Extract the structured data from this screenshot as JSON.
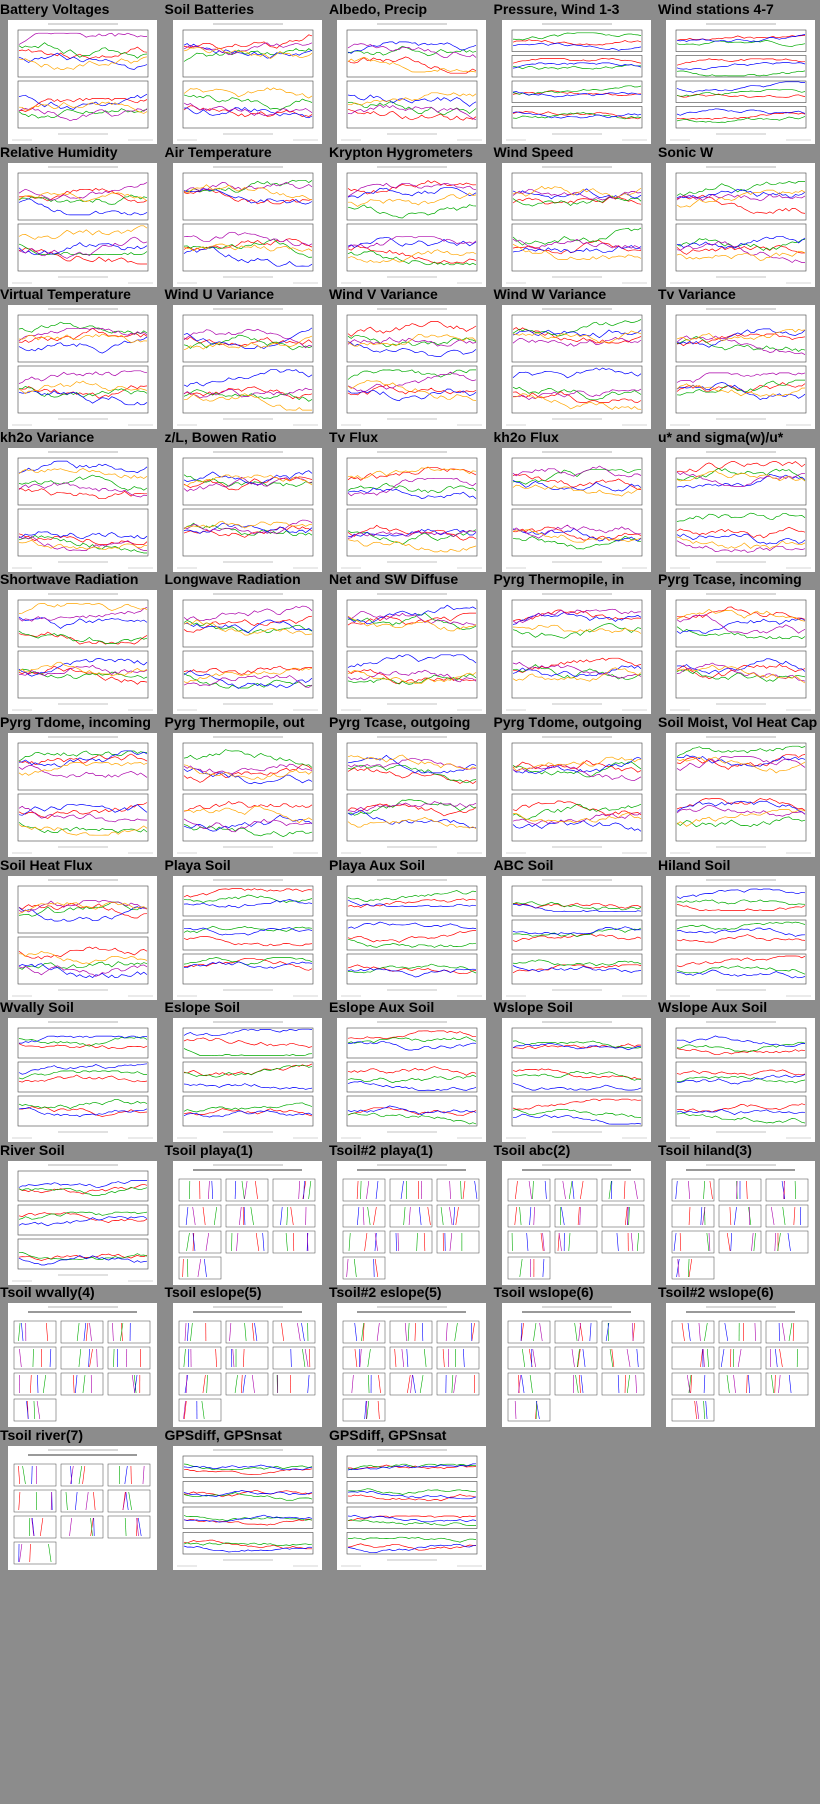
{
  "colors": {
    "background": "#8c8c8c",
    "series": [
      "#ff0000",
      "#00aa00",
      "#0000ff",
      "#aa00aa",
      "#ffa500",
      "#00aaaa",
      "#888800",
      "#555555"
    ]
  },
  "plots": [
    {
      "title": "Battery Voltages",
      "kind": "two-panel"
    },
    {
      "title": "Soil Batteries",
      "kind": "two-panel"
    },
    {
      "title": "Albedo, Precip",
      "kind": "two-panel"
    },
    {
      "title": "Pressure, Wind 1-3",
      "kind": "four-panel"
    },
    {
      "title": "Wind stations 4-7",
      "kind": "four-panel"
    },
    {
      "title": "Relative Humidity",
      "kind": "two-panel"
    },
    {
      "title": "Air Temperature",
      "kind": "two-panel"
    },
    {
      "title": "Krypton Hygrometers",
      "kind": "two-panel"
    },
    {
      "title": "Wind Speed",
      "kind": "two-panel"
    },
    {
      "title": "Sonic W",
      "kind": "two-panel"
    },
    {
      "title": "Virtual Temperature",
      "kind": "two-panel"
    },
    {
      "title": "Wind U Variance",
      "kind": "two-panel"
    },
    {
      "title": "Wind V Variance",
      "kind": "two-panel"
    },
    {
      "title": "Wind W Variance",
      "kind": "two-panel"
    },
    {
      "title": "Tv Variance",
      "kind": "two-panel"
    },
    {
      "title": "kh2o Variance",
      "kind": "two-panel"
    },
    {
      "title": "z/L, Bowen Ratio",
      "kind": "two-panel"
    },
    {
      "title": "Tv Flux",
      "kind": "two-panel"
    },
    {
      "title": "kh2o Flux",
      "kind": "two-panel"
    },
    {
      "title": "u* and sigma(w)/u*",
      "kind": "two-panel"
    },
    {
      "title": "Shortwave Radiation",
      "kind": "two-panel"
    },
    {
      "title": "Longwave Radiation",
      "kind": "two-panel"
    },
    {
      "title": "Net and SW Diffuse",
      "kind": "two-panel"
    },
    {
      "title": "Pyrg Thermopile, in",
      "kind": "two-panel"
    },
    {
      "title": "Pyrg Tcase, incoming",
      "kind": "two-panel"
    },
    {
      "title": "Pyrg Tdome, incoming",
      "kind": "two-panel"
    },
    {
      "title": "Pyrg Thermopile, out",
      "kind": "two-panel"
    },
    {
      "title": "Pyrg Tcase, outgoing",
      "kind": "two-panel"
    },
    {
      "title": "Pyrg Tdome, outgoing",
      "kind": "two-panel"
    },
    {
      "title": "Soil Moist, Vol Heat Cap",
      "kind": "two-panel"
    },
    {
      "title": "Soil Heat Flux",
      "kind": "two-panel"
    },
    {
      "title": "Playa Soil",
      "kind": "three-panel"
    },
    {
      "title": "Playa Aux Soil",
      "kind": "three-panel"
    },
    {
      "title": "ABC Soil",
      "kind": "three-panel"
    },
    {
      "title": "Hiland Soil",
      "kind": "three-panel"
    },
    {
      "title": "Wvally Soil",
      "kind": "three-panel"
    },
    {
      "title": "Eslope Soil",
      "kind": "three-panel"
    },
    {
      "title": "Eslope Aux Soil",
      "kind": "three-panel"
    },
    {
      "title": "Wslope Soil",
      "kind": "three-panel"
    },
    {
      "title": "Wslope Aux Soil",
      "kind": "three-panel"
    },
    {
      "title": "River Soil",
      "kind": "three-panel"
    },
    {
      "title": "Tsoil playa(1)",
      "kind": "profile"
    },
    {
      "title": "Tsoil#2 playa(1)",
      "kind": "profile"
    },
    {
      "title": "Tsoil abc(2)",
      "kind": "profile"
    },
    {
      "title": "Tsoil hiland(3)",
      "kind": "profile"
    },
    {
      "title": "Tsoil wvally(4)",
      "kind": "profile"
    },
    {
      "title": "Tsoil eslope(5)",
      "kind": "profile"
    },
    {
      "title": "Tsoil#2 eslope(5)",
      "kind": "profile"
    },
    {
      "title": "Tsoil wslope(6)",
      "kind": "profile"
    },
    {
      "title": "Tsoil#2 wslope(6)",
      "kind": "profile"
    },
    {
      "title": "Tsoil river(7)",
      "kind": "profile"
    },
    {
      "title": "GPSdiff, GPSnsat",
      "kind": "four-panel"
    },
    {
      "title": "GPSdiff, GPSnsat",
      "kind": "four-panel"
    }
  ]
}
